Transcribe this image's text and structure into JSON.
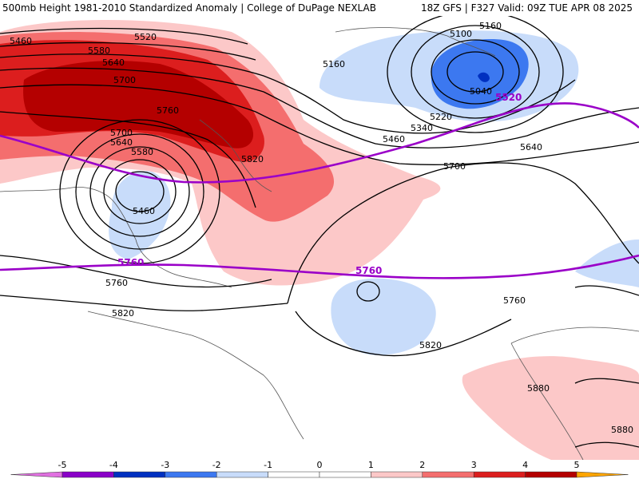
{
  "header": {
    "left": "500mb Height 1981-2010 Standardized Anomaly | College of DuPage NEXLAB",
    "right": "18Z GFS | F327 Valid: 09Z TUE APR 08 2025"
  },
  "contour_labels": [
    "5460",
    "5520",
    "5580",
    "5640",
    "5700",
    "5760",
    "5820",
    "5700",
    "5640",
    "5580",
    "5460",
    "5760",
    "5820",
    "5160",
    "5100",
    "5040",
    "5220",
    "5340",
    "5460",
    "5640",
    "5700",
    "5820",
    "5760",
    "5880",
    "5880"
  ],
  "highlight_labels": [
    "5760",
    "5760",
    "5520"
  ],
  "colors": {
    "neg5": "#e070e0",
    "neg4": "#8a00c8",
    "neg3": "#0030c0",
    "neg2": "#3c78f0",
    "neg1": "#c8dcfa",
    "pos1": "#fcc8c8",
    "pos2": "#f46e6e",
    "pos3": "#dc1e1e",
    "pos4": "#b40000",
    "pos5": "#ffa500",
    "highlight": "#9a00c8"
  },
  "colorbar": {
    "ticks": [
      "-5",
      "-4",
      "-3",
      "-2",
      "-1",
      "0",
      "1",
      "2",
      "3",
      "4",
      "5"
    ]
  }
}
